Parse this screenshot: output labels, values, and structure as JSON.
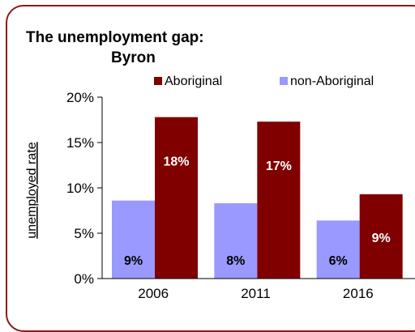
{
  "chart_data": {
    "type": "bar",
    "title": "The unemployment gap:",
    "subtitle": "Byron",
    "ylabel": "unemployed rate",
    "xlabel": "",
    "ylim": [
      0,
      0.2
    ],
    "yticks": [
      0,
      0.05,
      0.1,
      0.15,
      0.2
    ],
    "ytick_labels": [
      "0%",
      "5%",
      "10%",
      "15%",
      "20%"
    ],
    "categories": [
      "2006",
      "2011",
      "2016"
    ],
    "legend_position": "top",
    "series": [
      {
        "name": "Aboriginal",
        "color": "#800000",
        "values": [
          0.178,
          0.173,
          0.093
        ],
        "labels": [
          "18%",
          "17%",
          "9%"
        ]
      },
      {
        "name": "non-Aboriginal",
        "color": "#9999ff",
        "values": [
          0.086,
          0.083,
          0.064
        ],
        "labels": [
          "9%",
          "8%",
          "6%"
        ]
      }
    ]
  }
}
